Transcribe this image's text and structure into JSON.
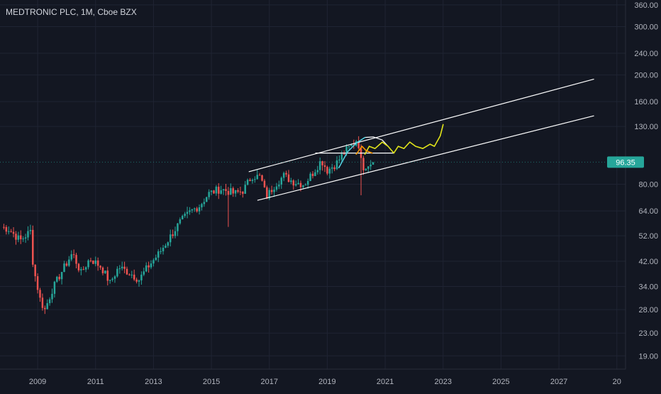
{
  "chart_data": {
    "type": "candlestick",
    "title": "MEDTRONIC PLC, 1M, Cboe BZX",
    "scale": "log",
    "grid": true,
    "ylim": [
      17,
      375
    ],
    "xlim": [
      2007.7,
      2029.3
    ],
    "y_ticks": [
      "360.00",
      "300.00",
      "240.00",
      "200.00",
      "160.00",
      "130.00",
      "80.00",
      "64.00",
      "52.00",
      "42.00",
      "34.00",
      "28.00",
      "23.00",
      "19.00"
    ],
    "x_ticks": [
      "2009",
      "2011",
      "2013",
      "2015",
      "2017",
      "2019",
      "2021",
      "2023",
      "2025",
      "2027",
      "20"
    ],
    "last_price": "96.35",
    "last_price_value": 96.35,
    "colors": {
      "background": "#131722",
      "up": "#26a69a",
      "down": "#ef5350",
      "text": "#b2b5be",
      "grid": "#1f2433",
      "channel": "#ffffff",
      "projection_yellow": "#e1e41a",
      "projection_cyan": "#4dd0e1",
      "projection_orange": "#ff9800"
    },
    "anchors": [
      [
        2007.75,
        56
      ],
      [
        2008.0,
        55
      ],
      [
        2008.4,
        50
      ],
      [
        2008.75,
        54
      ],
      [
        2008.85,
        40
      ],
      [
        2009.1,
        30
      ],
      [
        2009.25,
        28
      ],
      [
        2009.5,
        33
      ],
      [
        2009.8,
        38
      ],
      [
        2010.2,
        45
      ],
      [
        2010.5,
        38
      ],
      [
        2010.8,
        43
      ],
      [
        2011.2,
        40
      ],
      [
        2011.5,
        35
      ],
      [
        2011.8,
        40
      ],
      [
        2012.2,
        38
      ],
      [
        2012.5,
        36
      ],
      [
        2012.8,
        40
      ],
      [
        2013.2,
        45
      ],
      [
        2013.6,
        52
      ],
      [
        2013.9,
        58
      ],
      [
        2014.3,
        64
      ],
      [
        2014.6,
        67
      ],
      [
        2014.9,
        74
      ],
      [
        2015.3,
        77
      ],
      [
        2015.5,
        76
      ],
      [
        2015.8,
        74
      ],
      [
        2016.1,
        76
      ],
      [
        2016.4,
        86
      ],
      [
        2016.7,
        85
      ],
      [
        2016.9,
        72
      ],
      [
        2017.2,
        80
      ],
      [
        2017.5,
        86
      ],
      [
        2017.8,
        82
      ],
      [
        2018.2,
        80
      ],
      [
        2018.5,
        88
      ],
      [
        2018.8,
        98
      ],
      [
        2019.0,
        90
      ],
      [
        2019.3,
        95
      ],
      [
        2019.6,
        105
      ],
      [
        2019.9,
        112
      ],
      [
        2020.05,
        118
      ],
      [
        2020.2,
        92
      ],
      [
        2020.4,
        95
      ],
      [
        2020.6,
        96.35
      ]
    ],
    "spikes": [
      {
        "x": 2015.6,
        "low": 56
      },
      {
        "x": 2020.2,
        "low": 73
      }
    ],
    "annotations": {
      "channel_upper": [
        [
          2016.3,
          89
        ],
        [
          2028.2,
          193
        ]
      ],
      "channel_lower": [
        [
          2016.6,
          70
        ],
        [
          2028.2,
          142
        ]
      ],
      "horizontal_line": [
        [
          2018.6,
          104
        ],
        [
          2021.3,
          104
        ]
      ],
      "arc": [
        [
          2019.4,
          92
        ],
        [
          2019.7,
          105
        ],
        [
          2020.0,
          113
        ],
        [
          2020.3,
          118.5
        ],
        [
          2020.6,
          119
        ],
        [
          2020.9,
          116
        ],
        [
          2021.1,
          110
        ]
      ],
      "yellow_path": [
        [
          2020.3,
          103
        ],
        [
          2020.45,
          110
        ],
        [
          2020.65,
          108
        ],
        [
          2020.9,
          114
        ],
        [
          2021.1,
          110
        ],
        [
          2021.3,
          104
        ],
        [
          2021.45,
          110
        ],
        [
          2021.65,
          108
        ],
        [
          2021.85,
          114
        ],
        [
          2022.05,
          110
        ],
        [
          2022.3,
          108
        ],
        [
          2022.55,
          112
        ],
        [
          2022.7,
          110
        ],
        [
          2022.9,
          120
        ],
        [
          2023.0,
          132
        ]
      ],
      "orange_path": [
        [
          2020.0,
          103
        ],
        [
          2020.2,
          110
        ],
        [
          2020.35,
          106
        ],
        [
          2020.55,
          104
        ]
      ]
    }
  }
}
